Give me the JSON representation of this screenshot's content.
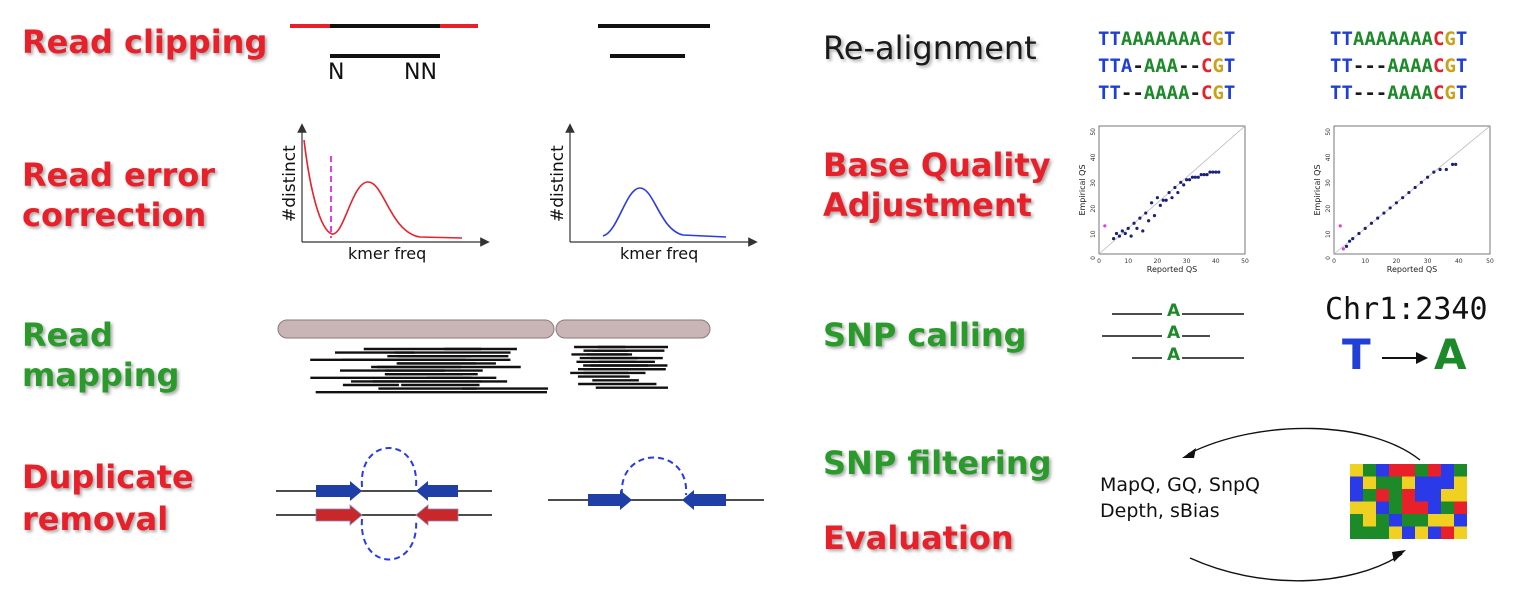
{
  "colors": {
    "red_label": "#e8202a",
    "green_label": "#2a9a2a",
    "base_T": "#1f3fd6",
    "base_A": "#1d8a2a",
    "base_G": "#c9a21a",
    "base_C": "#e8202a",
    "forward_read": "#1f3fa6",
    "reverse_read_dup": "#c8282a"
  },
  "steps": {
    "read_clipping": "Read clipping",
    "read_error_1": "Read error",
    "read_error_2": "correction",
    "read_mapping_1": "Read",
    "read_mapping_2": "mapping",
    "duplicate_1": "Duplicate",
    "duplicate_2": "removal",
    "realignment": "Re-alignment",
    "bqa_1": "Base Quality",
    "bqa_2": "Adjustment",
    "snp_calling": "SNP calling",
    "snp_filtering": "SNP filtering",
    "evaluation": "Evaluation"
  },
  "clipping": {
    "n_left": "N",
    "n_right": "NN"
  },
  "kmer": {
    "ylabel": "#distinct",
    "xlabel": "kmer freq"
  },
  "realign": {
    "before": [
      [
        [
          "b",
          "TT"
        ],
        [
          "g",
          "AAAAAAA"
        ],
        [
          "c",
          "C"
        ],
        [
          "y",
          "G"
        ],
        [
          "b",
          "T"
        ]
      ],
      [
        [
          "b",
          "TTA"
        ],
        [
          "dk",
          "-"
        ],
        [
          "g",
          "AAA"
        ],
        [
          "dk",
          "--"
        ],
        [
          "c",
          "C"
        ],
        [
          "y",
          "G"
        ],
        [
          "b",
          "T"
        ]
      ],
      [
        [
          "b",
          "TT"
        ],
        [
          "dk",
          "--"
        ],
        [
          "g",
          "AAAA"
        ],
        [
          "dk",
          "-"
        ],
        [
          "c",
          "C"
        ],
        [
          "y",
          "G"
        ],
        [
          "b",
          "T"
        ]
      ]
    ],
    "after": [
      [
        [
          "b",
          "TT"
        ],
        [
          "g",
          "AAAAAAA"
        ],
        [
          "c",
          "C"
        ],
        [
          "y",
          "G"
        ],
        [
          "b",
          "T"
        ]
      ],
      [
        [
          "b",
          "TT"
        ],
        [
          "dk",
          "---"
        ],
        [
          "g",
          "AAAA"
        ],
        [
          "c",
          "C"
        ],
        [
          "y",
          "G"
        ],
        [
          "b",
          "T"
        ]
      ],
      [
        [
          "b",
          "TT"
        ],
        [
          "dk",
          "---"
        ],
        [
          "g",
          "AAAA"
        ],
        [
          "c",
          "C"
        ],
        [
          "y",
          "G"
        ],
        [
          "b",
          "T"
        ]
      ]
    ]
  },
  "qs_plot": {
    "xlabel": "Reported QS",
    "ylabel": "Empirical QS",
    "ticks": [
      "0",
      "10",
      "20",
      "30",
      "40",
      "50"
    ]
  },
  "snp": {
    "allele": "A",
    "position": "Chr1:2340",
    "ref": "T",
    "alt": "A"
  },
  "filtering": {
    "line1": "MapQ, GQ, SnpQ",
    "line2": "Depth, sBias"
  },
  "chart_data": [
    {
      "type": "line",
      "xlabel": "kmer freq",
      "ylabel": "#distinct",
      "series": [
        {
          "values": "bimodal: error peak near 0, main peak at mid frequency"
        }
      ]
    },
    {
      "type": "scatter",
      "xlabel": "Reported QS",
      "ylabel": "Empirical QS",
      "xlim": [
        0,
        50
      ],
      "ylim": [
        0,
        50
      ],
      "series": [
        {
          "x": [
            2,
            5,
            6,
            7,
            8,
            9,
            10,
            11,
            12,
            13,
            14,
            15,
            16,
            17,
            18,
            19,
            20,
            21,
            22,
            23,
            24,
            25,
            26,
            27,
            28,
            29,
            30,
            31,
            32,
            33,
            34,
            35,
            36,
            37,
            38,
            39,
            40,
            41
          ],
          "y": [
            11,
            6,
            8,
            7,
            9,
            8,
            10,
            7,
            12,
            10,
            14,
            9,
            16,
            13,
            20,
            15,
            22,
            19,
            21,
            21,
            24,
            22,
            26,
            24,
            28,
            27,
            29,
            29,
            30,
            30,
            30,
            31,
            31,
            31,
            32,
            32,
            32,
            32
          ]
        }
      ]
    },
    {
      "type": "scatter",
      "xlabel": "Reported QS",
      "ylabel": "Empirical QS",
      "xlim": [
        0,
        50
      ],
      "ylim": [
        0,
        50
      ],
      "series": [
        {
          "x": [
            2,
            3,
            4,
            5,
            6,
            8,
            10,
            12,
            14,
            16,
            18,
            20,
            22,
            24,
            26,
            28,
            30,
            32,
            34,
            36,
            38,
            39
          ],
          "y": [
            11,
            2,
            3,
            5,
            6,
            8,
            10,
            12,
            14,
            16,
            18,
            20,
            22,
            24,
            26,
            28,
            30,
            32,
            33,
            33,
            35,
            35
          ]
        }
      ]
    }
  ]
}
